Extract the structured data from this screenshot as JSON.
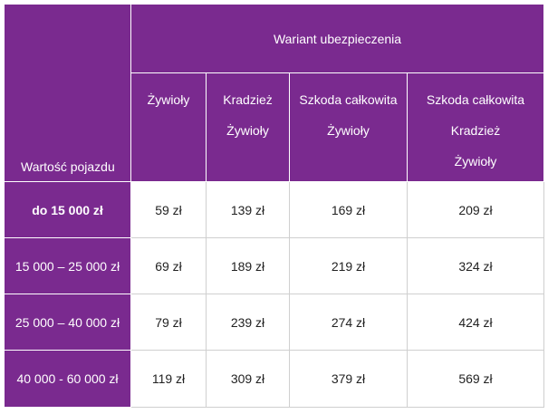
{
  "table": {
    "corner_label": "Wartość pojazdu",
    "variant_header": "Wariant ubezpieczenia",
    "columns": [
      {
        "lines": [
          "Żywioły"
        ]
      },
      {
        "lines": [
          "Kradzież",
          "Żywioły"
        ]
      },
      {
        "lines": [
          "Szkoda całkowita",
          "Żywioły"
        ]
      },
      {
        "lines": [
          "Szkoda całkowita",
          "Kradzież",
          "Żywioły"
        ]
      }
    ],
    "rows": [
      {
        "label": "do 15 000 zł",
        "values": [
          "59 zł",
          "139 zł",
          "169 zł",
          "209 zł"
        ]
      },
      {
        "label": "15 000 – 25 000 zł",
        "values": [
          "69 zł",
          "189 zł",
          "219 zł",
          "324 zł"
        ]
      },
      {
        "label": "25 000 – 40 000 zł",
        "values": [
          "79 zł",
          "239 zł",
          "274 zł",
          "424 zł"
        ]
      },
      {
        "label": "40 000 - 60 000 zł",
        "values": [
          "119 zł",
          "309 zł",
          "379 zł",
          "569 zł"
        ]
      }
    ]
  },
  "colors": {
    "header_purple": "#7a2a8f",
    "cell_white": "#ffffff",
    "grid_line": "#cfcfcf"
  }
}
